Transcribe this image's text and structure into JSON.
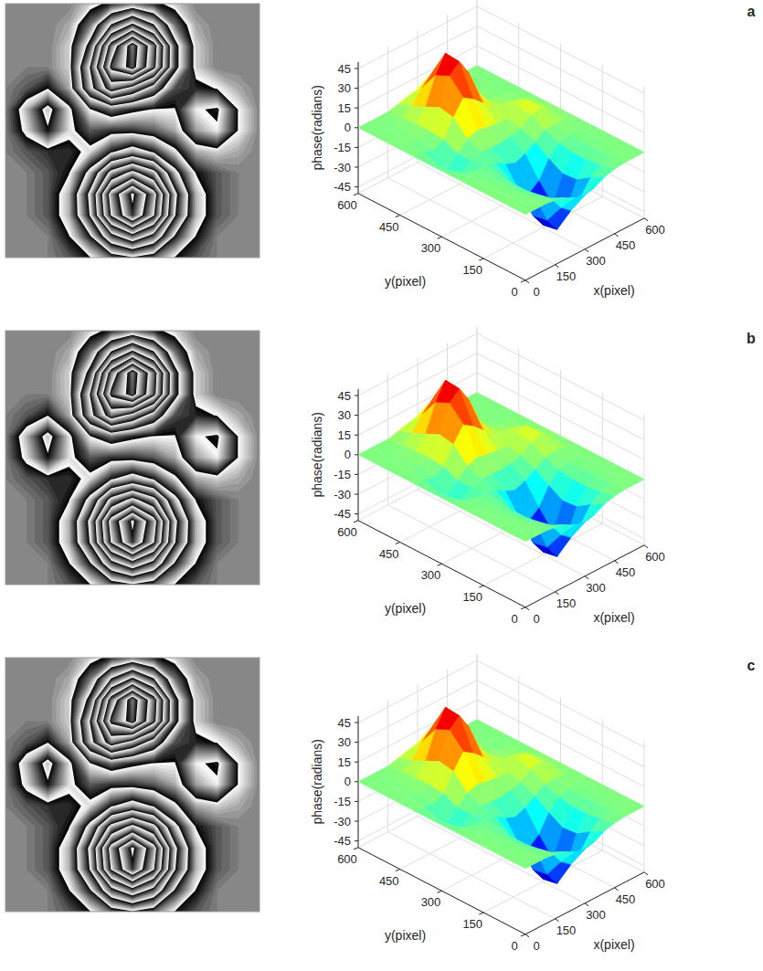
{
  "chart_data": [
    {
      "type": "surface",
      "title": "a",
      "x": [
        0,
        50,
        100,
        150,
        200,
        250,
        300,
        350,
        400,
        450,
        500,
        550,
        600
      ],
      "y": [
        0,
        50,
        100,
        150,
        200,
        250,
        300,
        350,
        400,
        450,
        500,
        550,
        600
      ],
      "z": [
        [
          0,
          0,
          0,
          -1,
          -3,
          -7,
          -9,
          -7,
          -3,
          -1,
          0,
          0,
          0
        ],
        [
          0,
          0,
          0,
          -3,
          -9,
          -20,
          -26,
          -20,
          -9,
          -3,
          0,
          0,
          0
        ],
        [
          0,
          0,
          -1,
          -5,
          -16,
          -35,
          -46,
          -35,
          -16,
          -5,
          -1,
          0,
          0
        ],
        [
          0,
          0,
          -1,
          -5,
          -17,
          -37,
          -48,
          -37,
          -17,
          -5,
          -1,
          0,
          0
        ],
        [
          0,
          0,
          -1,
          -3,
          -11,
          -24,
          -30,
          -24,
          -11,
          -3,
          -1,
          0,
          0
        ],
        [
          0,
          -1,
          -2,
          -2,
          -4,
          -9,
          -12,
          -9,
          -4,
          1,
          2,
          1,
          0
        ],
        [
          0,
          -4,
          -9,
          -4,
          -1,
          -2,
          -2,
          -1,
          1,
          7,
          9,
          3,
          0
        ],
        [
          0,
          -5,
          -11,
          -4,
          3,
          6,
          4,
          3,
          3,
          9,
          10,
          3,
          0
        ],
        [
          0,
          -1,
          -3,
          1,
          14,
          25,
          20,
          13,
          5,
          4,
          3,
          1,
          0
        ],
        [
          0,
          0,
          0,
          2,
          16,
          36,
          43,
          30,
          11,
          2,
          0,
          0,
          0
        ],
        [
          0,
          0,
          0,
          2,
          11,
          31,
          44,
          31,
          11,
          2,
          0,
          0,
          0
        ],
        [
          0,
          0,
          0,
          1,
          6,
          16,
          23,
          16,
          6,
          1,
          0,
          0,
          0
        ],
        [
          0,
          0,
          0,
          0,
          2,
          4,
          6,
          4,
          2,
          0,
          0,
          0,
          0
        ]
      ],
      "xlim": [
        0,
        600
      ],
      "ylim": [
        0,
        600
      ],
      "zlim": [
        -50,
        50
      ],
      "xticks": [
        0,
        150,
        300,
        450,
        600
      ],
      "yticks": [
        0,
        150,
        300,
        450,
        600
      ],
      "zticks": [
        -45,
        -30,
        -15,
        0,
        15,
        30,
        45
      ],
      "xlabel": "x(pixel)",
      "ylabel": "y(pixel)",
      "zlabel": "phase(radians)",
      "grid": true
    },
    {
      "type": "surface",
      "title": "b",
      "x": [
        0,
        50,
        100,
        150,
        200,
        250,
        300,
        350,
        400,
        450,
        500,
        550,
        600
      ],
      "y": [
        0,
        50,
        100,
        150,
        200,
        250,
        300,
        350,
        400,
        450,
        500,
        550,
        600
      ],
      "z": [
        [
          0,
          0,
          0,
          -1,
          -3,
          -7,
          -9,
          -7,
          -3,
          -1,
          0,
          0,
          0
        ],
        [
          0,
          0,
          0,
          -3,
          -9,
          -20,
          -26,
          -20,
          -9,
          -3,
          0,
          0,
          0
        ],
        [
          0,
          0,
          -1,
          -5,
          -16,
          -35,
          -46,
          -35,
          -16,
          -5,
          -1,
          0,
          0
        ],
        [
          0,
          0,
          -1,
          -5,
          -17,
          -37,
          -48,
          -37,
          -17,
          -5,
          -1,
          0,
          0
        ],
        [
          0,
          0,
          -1,
          -3,
          -11,
          -24,
          -30,
          -24,
          -11,
          -3,
          -1,
          0,
          0
        ],
        [
          0,
          -1,
          -2,
          -2,
          -4,
          -9,
          -12,
          -9,
          -4,
          1,
          2,
          1,
          0
        ],
        [
          0,
          -4,
          -9,
          -4,
          -1,
          -2,
          -2,
          -1,
          1,
          7,
          9,
          3,
          0
        ],
        [
          0,
          -5,
          -11,
          -4,
          3,
          6,
          4,
          3,
          3,
          9,
          10,
          3,
          0
        ],
        [
          0,
          -1,
          -3,
          1,
          14,
          25,
          20,
          13,
          5,
          4,
          3,
          1,
          0
        ],
        [
          0,
          0,
          0,
          2,
          16,
          36,
          43,
          30,
          11,
          2,
          0,
          0,
          0
        ],
        [
          0,
          0,
          0,
          2,
          11,
          31,
          44,
          31,
          11,
          2,
          0,
          0,
          0
        ],
        [
          0,
          0,
          0,
          1,
          6,
          16,
          23,
          16,
          6,
          1,
          0,
          0,
          0
        ],
        [
          0,
          0,
          0,
          0,
          2,
          4,
          6,
          4,
          2,
          0,
          0,
          0,
          0
        ]
      ],
      "xlim": [
        0,
        600
      ],
      "ylim": [
        0,
        600
      ],
      "zlim": [
        -50,
        50
      ],
      "xticks": [
        0,
        150,
        300,
        450,
        600
      ],
      "yticks": [
        0,
        150,
        300,
        450,
        600
      ],
      "zticks": [
        -45,
        -30,
        -15,
        0,
        15,
        30,
        45
      ],
      "xlabel": "x(pixel)",
      "ylabel": "y(pixel)",
      "zlabel": "phase(radians)",
      "grid": true
    },
    {
      "type": "surface",
      "title": "c",
      "x": [
        0,
        50,
        100,
        150,
        200,
        250,
        300,
        350,
        400,
        450,
        500,
        550,
        600
      ],
      "y": [
        0,
        50,
        100,
        150,
        200,
        250,
        300,
        350,
        400,
        450,
        500,
        550,
        600
      ],
      "z": [
        [
          0,
          0,
          0,
          -1,
          -3,
          -7,
          -9,
          -7,
          -3,
          -1,
          0,
          0,
          0
        ],
        [
          0,
          0,
          0,
          -3,
          -9,
          -20,
          -26,
          -20,
          -9,
          -3,
          0,
          0,
          0
        ],
        [
          0,
          0,
          -1,
          -5,
          -16,
          -35,
          -46,
          -35,
          -16,
          -5,
          -1,
          0,
          0
        ],
        [
          0,
          0,
          -1,
          -5,
          -17,
          -37,
          -48,
          -37,
          -17,
          -5,
          -1,
          0,
          0
        ],
        [
          0,
          0,
          -1,
          -3,
          -11,
          -24,
          -30,
          -24,
          -11,
          -3,
          -1,
          0,
          0
        ],
        [
          0,
          -1,
          -2,
          -2,
          -4,
          -9,
          -12,
          -9,
          -4,
          1,
          2,
          1,
          0
        ],
        [
          0,
          -4,
          -9,
          -4,
          -1,
          -2,
          -2,
          -1,
          1,
          7,
          9,
          3,
          0
        ],
        [
          0,
          -5,
          -11,
          -4,
          3,
          6,
          4,
          3,
          3,
          9,
          10,
          3,
          0
        ],
        [
          0,
          -1,
          -3,
          1,
          14,
          25,
          20,
          13,
          5,
          4,
          3,
          1,
          0
        ],
        [
          0,
          0,
          0,
          2,
          16,
          36,
          43,
          30,
          11,
          2,
          0,
          0,
          0
        ],
        [
          0,
          0,
          0,
          2,
          11,
          31,
          44,
          31,
          11,
          2,
          0,
          0,
          0
        ],
        [
          0,
          0,
          0,
          1,
          6,
          16,
          23,
          16,
          6,
          1,
          0,
          0,
          0
        ],
        [
          0,
          0,
          0,
          0,
          2,
          4,
          6,
          4,
          2,
          0,
          0,
          0,
          0
        ]
      ],
      "xlim": [
        0,
        600
      ],
      "ylim": [
        0,
        600
      ],
      "zlim": [
        -50,
        50
      ],
      "xticks": [
        0,
        150,
        300,
        450,
        600
      ],
      "yticks": [
        0,
        150,
        300,
        450,
        600
      ],
      "zticks": [
        -45,
        -30,
        -15,
        0,
        15,
        30,
        45
      ],
      "xlabel": "x(pixel)",
      "ylabel": "y(pixel)",
      "zlabel": "phase(radians)",
      "grid": true
    }
  ]
}
